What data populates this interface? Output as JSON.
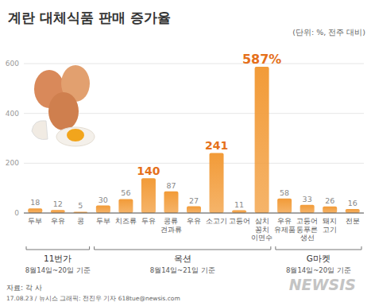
{
  "chart_data": {
    "type": "bar",
    "title": "계란 대체식품 판매 증가율",
    "subtitle": "(단위: %, 전주 대비)",
    "categories": [
      "두부",
      "우유",
      "콩",
      "두부",
      "치즈류",
      "두유",
      "콩류\n견과류",
      "우유",
      "소고기",
      "고등어",
      "삼치\n꽁치\n이면수",
      "우유\n유제품",
      "고등어\n동푸른\n생선",
      "돼지\n고기",
      "전분"
    ],
    "values": [
      18,
      12,
      5,
      30,
      56,
      140,
      87,
      27,
      241,
      11,
      587,
      58,
      33,
      26,
      16
    ],
    "value_labels": [
      "18",
      "12",
      "5",
      "30",
      "56",
      "140",
      "87",
      "27",
      "241",
      "11",
      "587%",
      "58",
      "33",
      "26",
      "16"
    ],
    "groups": [
      {
        "name": "11번가",
        "note": "8월14일~20일 기준",
        "size": 3
      },
      {
        "name": "옥션",
        "note": "8월14일~21일 기준",
        "size": 8
      },
      {
        "name": "G마켓",
        "note": "8월14일~20일 기준",
        "size": 4
      }
    ],
    "color": "#f29b38",
    "ylim": [
      0,
      600
    ],
    "yticks": [
      0,
      200,
      400,
      600
    ],
    "grid": true,
    "data_labels": true,
    "annotations": [
      "자료: 각 사",
      "17.08.23 / 뉴시스 그래픽: 전진우 기자 618tue@newsis.com",
      "NEWSIS"
    ]
  }
}
